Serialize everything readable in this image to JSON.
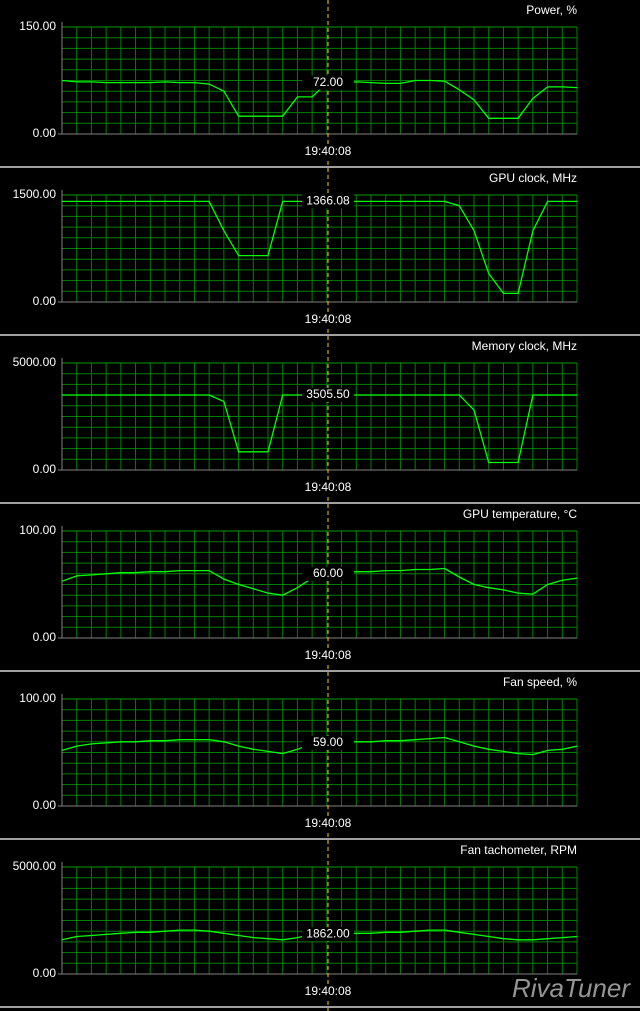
{
  "chart_data": [
    {
      "type": "line",
      "title": "Power, %",
      "ylim": [
        0,
        150
      ],
      "yticks": [
        {
          "value": 0,
          "label": "0.00"
        },
        {
          "value": 150,
          "label": "150.00"
        }
      ],
      "color": "#00ff00",
      "cursor_value_label": "72.00",
      "cursor_time": "19:40:08",
      "values": [
        75,
        73,
        73,
        72,
        72,
        72,
        72,
        73,
        72,
        72,
        70,
        60,
        25,
        25,
        25,
        25,
        52,
        52,
        72,
        72,
        73,
        72,
        71,
        71,
        75,
        75,
        74,
        62,
        48,
        22,
        22,
        22,
        50,
        66,
        66,
        65
      ]
    },
    {
      "type": "line",
      "title": "GPU clock, MHz",
      "ylim": [
        0,
        1500
      ],
      "yticks": [
        {
          "value": 0,
          "label": "0.00"
        },
        {
          "value": 1500,
          "label": "1500.00"
        }
      ],
      "color": "#00ff00",
      "cursor_value_label": "1366.08",
      "cursor_time": "19:40:08",
      "values": [
        1410,
        1410,
        1410,
        1410,
        1410,
        1410,
        1410,
        1410,
        1410,
        1410,
        1410,
        1000,
        650,
        650,
        650,
        1410,
        1410,
        1410,
        1410,
        1410,
        1410,
        1410,
        1410,
        1410,
        1410,
        1410,
        1410,
        1350,
        1000,
        400,
        120,
        120,
        1000,
        1410,
        1410,
        1410
      ]
    },
    {
      "type": "line",
      "title": "Memory clock, MHz",
      "ylim": [
        0,
        5000
      ],
      "yticks": [
        {
          "value": 0,
          "label": "0.00"
        },
        {
          "value": 5000,
          "label": "5000.00"
        }
      ],
      "color": "#00ff00",
      "cursor_value_label": "3505.50",
      "cursor_time": "19:40:08",
      "values": [
        3505,
        3505,
        3505,
        3505,
        3505,
        3505,
        3505,
        3505,
        3505,
        3505,
        3505,
        3200,
        850,
        850,
        850,
        3505,
        3505,
        3505,
        3505,
        3505,
        3505,
        3505,
        3505,
        3505,
        3505,
        3505,
        3505,
        3505,
        2800,
        350,
        350,
        350,
        3505,
        3505,
        3505,
        3505
      ]
    },
    {
      "type": "line",
      "title": "GPU temperature, °C",
      "ylim": [
        0,
        100
      ],
      "yticks": [
        {
          "value": 0,
          "label": "0.00"
        },
        {
          "value": 100,
          "label": "100.00"
        }
      ],
      "color": "#00ff00",
      "cursor_value_label": "60.00",
      "cursor_time": "19:40:08",
      "values": [
        53,
        58,
        59,
        60,
        61,
        61,
        62,
        62,
        63,
        63,
        63,
        55,
        50,
        46,
        42,
        40,
        47,
        56,
        60,
        61,
        62,
        62,
        63,
        63,
        64,
        64,
        65,
        57,
        50,
        47,
        45,
        42,
        41,
        50,
        54,
        56
      ]
    },
    {
      "type": "line",
      "title": "Fan speed, %",
      "ylim": [
        0,
        100
      ],
      "yticks": [
        {
          "value": 0,
          "label": "0.00"
        },
        {
          "value": 100,
          "label": "100.00"
        }
      ],
      "color": "#00ff00",
      "cursor_value_label": "59.00",
      "cursor_time": "19:40:08",
      "values": [
        52,
        56,
        58,
        59,
        60,
        60,
        61,
        61,
        62,
        62,
        62,
        60,
        56,
        53,
        51,
        49,
        53,
        58,
        59,
        60,
        60,
        60,
        61,
        61,
        62,
        63,
        64,
        60,
        56,
        53,
        51,
        49,
        48,
        52,
        53,
        56
      ]
    },
    {
      "type": "line",
      "title": "Fan tachometer, RPM",
      "ylim": [
        0,
        5000
      ],
      "yticks": [
        {
          "value": 0,
          "label": "0.00"
        },
        {
          "value": 5000,
          "label": "5000.00"
        }
      ],
      "color": "#00ff00",
      "cursor_value_label": "1862.00",
      "cursor_time": "19:40:08",
      "values": [
        1600,
        1750,
        1800,
        1850,
        1900,
        1950,
        1950,
        2000,
        2050,
        2050,
        2000,
        1900,
        1800,
        1700,
        1650,
        1600,
        1700,
        1850,
        1862,
        1862,
        1900,
        1900,
        1950,
        1950,
        2000,
        2050,
        2050,
        1950,
        1850,
        1750,
        1650,
        1600,
        1600,
        1650,
        1700,
        1750
      ]
    }
  ],
  "logo": "RivaTuner"
}
